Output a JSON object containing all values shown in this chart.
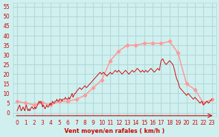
{
  "bg_color": "#d0f0f0",
  "grid_color": "#b0d8d8",
  "line_color_avg": "#ff9999",
  "line_color_gust": "#cc0000",
  "marker_color_avg": "#ff9999",
  "xlabel": "Vent moyen/en rafales ( km/h )",
  "xlabel_color": "#cc0000",
  "ylabel_color": "#cc0000",
  "yticks": [
    0,
    5,
    10,
    15,
    20,
    25,
    30,
    35,
    40,
    45,
    50,
    55
  ],
  "xticks": [
    0,
    1,
    2,
    3,
    4,
    5,
    6,
    7,
    8,
    9,
    10,
    11,
    12,
    13,
    14,
    15,
    16,
    17,
    18,
    19,
    20,
    21,
    22,
    23
  ],
  "xlim": [
    -0.5,
    23.5
  ],
  "ylim": [
    -2,
    57
  ],
  "avg_x": [
    0,
    1,
    2,
    3,
    4,
    5,
    6,
    7,
    8,
    9,
    10,
    11,
    12,
    13,
    14,
    15,
    16,
    17,
    18,
    19,
    20,
    21,
    22,
    23
  ],
  "avg_y": [
    6,
    5,
    4,
    5,
    4,
    6,
    6,
    7,
    9,
    13,
    17,
    27,
    32,
    35,
    35,
    36,
    36,
    36,
    37,
    31,
    15,
    12,
    5,
    7
  ],
  "gust_x": [
    0,
    0.1,
    0.2,
    0.3,
    0.4,
    0.5,
    0.6,
    0.7,
    0.8,
    0.9,
    1.0,
    1.1,
    1.2,
    1.3,
    1.4,
    1.5,
    1.6,
    1.7,
    1.8,
    1.9,
    2.0,
    2.1,
    2.2,
    2.3,
    2.4,
    2.5,
    2.6,
    2.7,
    2.8,
    2.9,
    3.0,
    3.1,
    3.2,
    3.3,
    3.4,
    3.5,
    3.6,
    3.7,
    3.8,
    3.9,
    4.0,
    4.1,
    4.2,
    4.3,
    4.4,
    4.5,
    4.6,
    4.7,
    4.8,
    4.9,
    5.0,
    5.1,
    5.2,
    5.3,
    5.4,
    5.5,
    5.6,
    5.7,
    5.8,
    5.9,
    6.0,
    6.1,
    6.2,
    6.3,
    6.4,
    6.5,
    6.6,
    6.7,
    6.8,
    6.9,
    7.0,
    7.2,
    7.4,
    7.6,
    7.8,
    8.0,
    8.2,
    8.4,
    8.6,
    8.8,
    9.0,
    9.2,
    9.4,
    9.6,
    9.8,
    10.0,
    10.2,
    10.4,
    10.6,
    10.8,
    11.0,
    11.2,
    11.4,
    11.6,
    11.8,
    12.0,
    12.2,
    12.4,
    12.6,
    12.8,
    13.0,
    13.2,
    13.4,
    13.6,
    13.8,
    14.0,
    14.2,
    14.4,
    14.6,
    14.8,
    15.0,
    15.2,
    15.4,
    15.6,
    15.8,
    16.0,
    16.2,
    16.4,
    16.6,
    16.8,
    17.0,
    17.2,
    17.4,
    17.6,
    17.8,
    18.0,
    18.2,
    18.4,
    18.6,
    18.8,
    19.0,
    19.2,
    19.4,
    19.6,
    19.8,
    20.0,
    20.2,
    20.4,
    20.6,
    20.8,
    21.0,
    21.2,
    21.4,
    21.6,
    21.8,
    22.0,
    22.2,
    22.4,
    22.6,
    22.8,
    23.0
  ],
  "gust_y": [
    1,
    2,
    3,
    4,
    2,
    1,
    2,
    3,
    2,
    1,
    3,
    4,
    2,
    1,
    2,
    1,
    2,
    3,
    3,
    2,
    2,
    3,
    2,
    3,
    4,
    5,
    6,
    5,
    6,
    5,
    3,
    4,
    3,
    2,
    3,
    4,
    3,
    3,
    4,
    5,
    4,
    5,
    6,
    5,
    5,
    6,
    6,
    7,
    6,
    6,
    7,
    7,
    7,
    6,
    7,
    7,
    7,
    8,
    7,
    7,
    7,
    8,
    7,
    8,
    9,
    10,
    8,
    9,
    10,
    10,
    11,
    12,
    13,
    12,
    13,
    14,
    13,
    14,
    15,
    16,
    17,
    18,
    19,
    20,
    21,
    20,
    21,
    20,
    19,
    20,
    21,
    20,
    21,
    22,
    21,
    22,
    21,
    20,
    21,
    22,
    21,
    20,
    21,
    22,
    21,
    22,
    23,
    22,
    21,
    22,
    21,
    22,
    21,
    22,
    23,
    22,
    21,
    22,
    23,
    22,
    27,
    28,
    26,
    25,
    26,
    27,
    26,
    25,
    22,
    18,
    16,
    13,
    12,
    11,
    10,
    9,
    10,
    9,
    8,
    7,
    8,
    7,
    6,
    5,
    6,
    4,
    5,
    6,
    5,
    6,
    7
  ]
}
